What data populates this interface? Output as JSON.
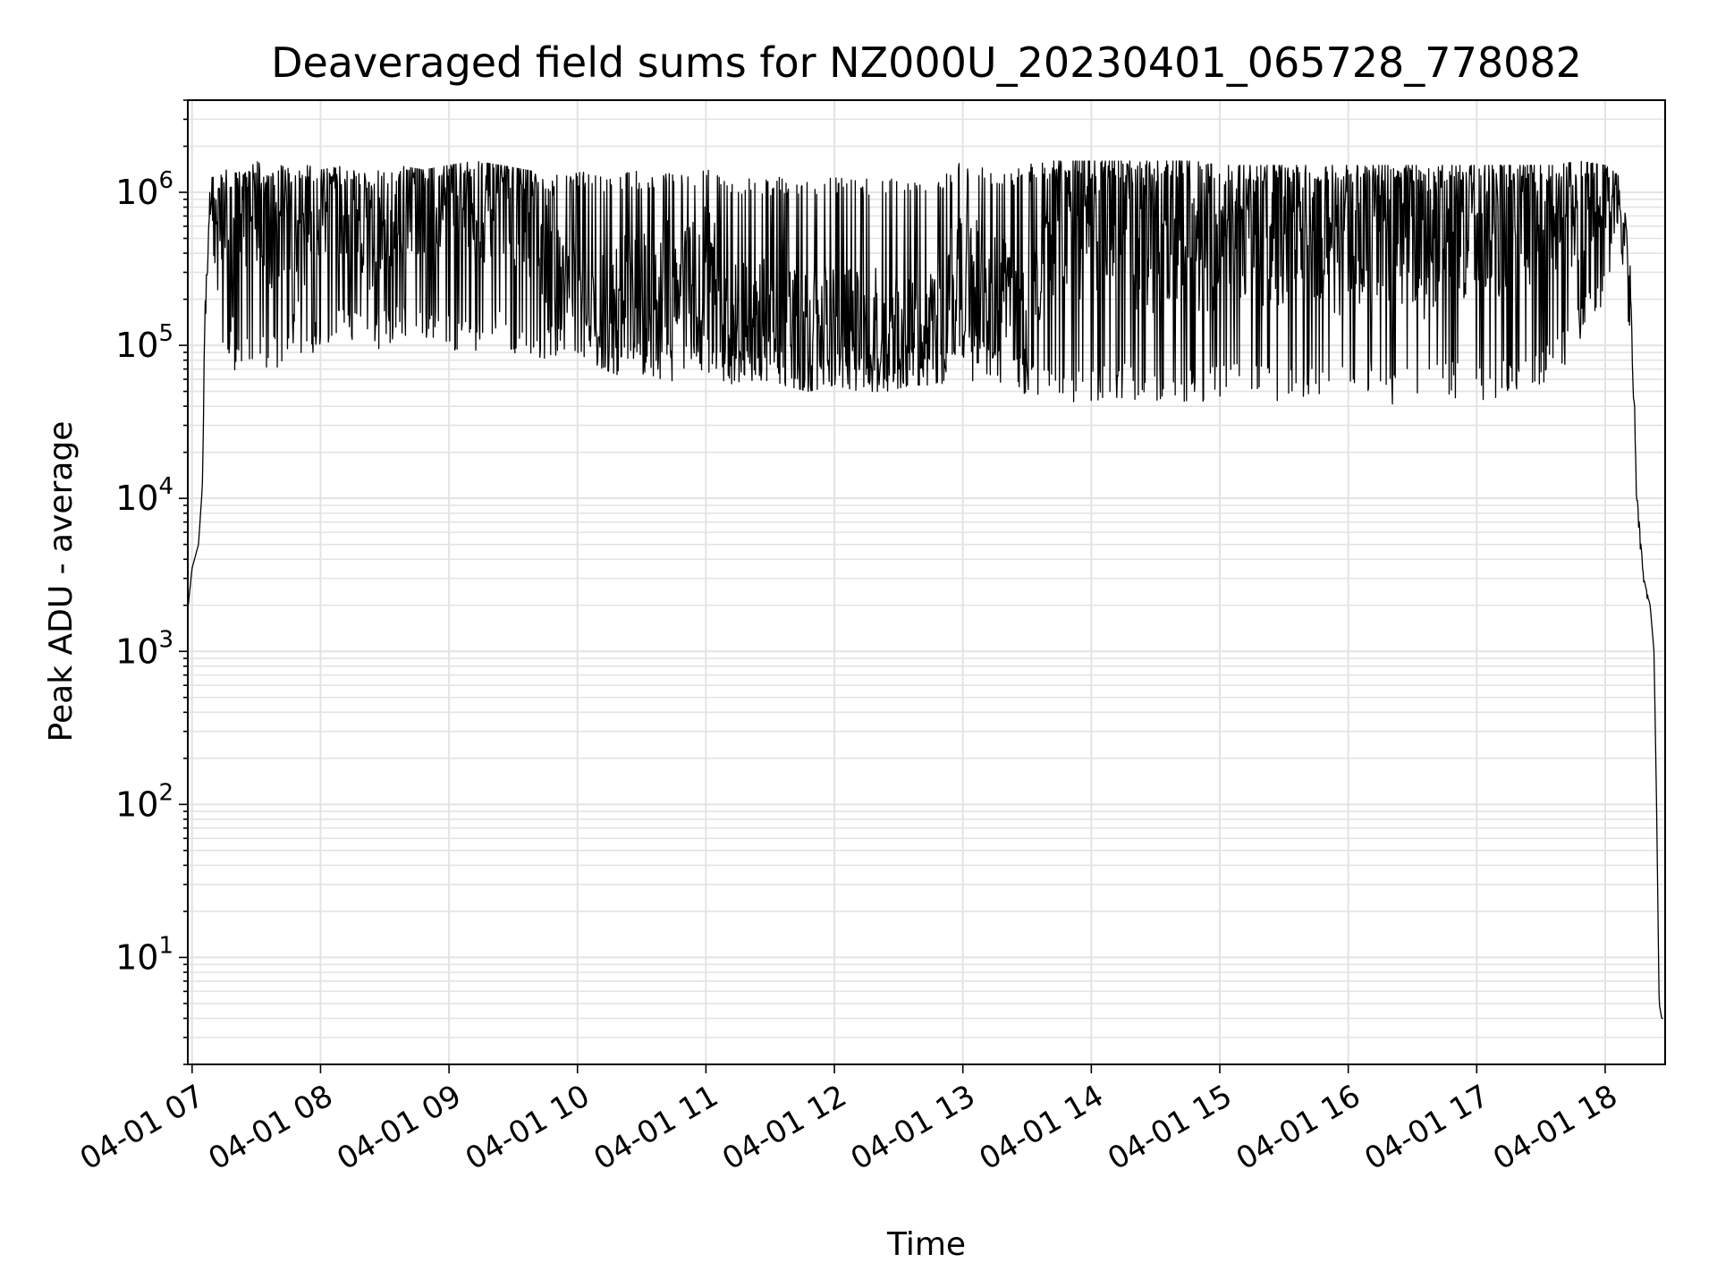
{
  "chart_data": {
    "type": "line",
    "title": "Deaveraged field sums for NZ000U_20230401_065728_778082",
    "xlabel": "Time",
    "ylabel": "Peak ADU - average",
    "yscale": "log",
    "ylim": [
      2,
      4000000
    ],
    "xlim": [
      "04-01 06:58",
      "04-01 18:28"
    ],
    "grid": true,
    "legend": "none",
    "line_color": "#000000",
    "x_ticks": [
      "04-01 07",
      "04-01 08",
      "04-01 09",
      "04-01 10",
      "04-01 11",
      "04-01 12",
      "04-01 13",
      "04-01 14",
      "04-01 15",
      "04-01 16",
      "04-01 17",
      "04-01 18"
    ],
    "y_ticks": [
      {
        "base": "10",
        "exp": "1",
        "value": 10
      },
      {
        "base": "10",
        "exp": "2",
        "value": 100
      },
      {
        "base": "10",
        "exp": "3",
        "value": 1000
      },
      {
        "base": "10",
        "exp": "4",
        "value": 10000
      },
      {
        "base": "10",
        "exp": "5",
        "value": 100000
      },
      {
        "base": "10",
        "exp": "6",
        "value": 1000000
      }
    ],
    "series": [
      {
        "x_unit": "hour of day (04-01)",
        "x": [
          6.97,
          7.0,
          7.05,
          7.08,
          7.1,
          7.13,
          7.15,
          7.18,
          7.2,
          7.25,
          7.3,
          7.35,
          7.4,
          7.5,
          7.6,
          7.7,
          7.8,
          7.9,
          8.0,
          8.2,
          8.4,
          8.6,
          8.8,
          9.0,
          9.2,
          9.4,
          9.6,
          9.8,
          10.0,
          10.2,
          10.4,
          10.6,
          10.8,
          11.0,
          11.2,
          11.4,
          11.6,
          11.8,
          12.0,
          12.2,
          12.4,
          12.6,
          12.8,
          13.0,
          13.2,
          13.4,
          13.6,
          13.8,
          14.0,
          14.2,
          14.4,
          14.6,
          14.8,
          15.0,
          15.2,
          15.4,
          15.6,
          15.8,
          16.0,
          16.2,
          16.4,
          16.6,
          16.8,
          17.0,
          17.2,
          17.4,
          17.6,
          17.8,
          18.0,
          18.1,
          18.15,
          18.2,
          18.25,
          18.3,
          18.35,
          18.38,
          18.4,
          18.42,
          18.44,
          18.45
        ],
        "y": [
          2000,
          3500,
          5000,
          12000,
          150000,
          700000,
          1000000,
          800000,
          500000,
          1000000,
          300000,
          600000,
          900000,
          1000000,
          500000,
          900000,
          300000,
          800000,
          1000000,
          700000,
          500000,
          900000,
          1000000,
          1100000,
          900000,
          1000000,
          800000,
          400000,
          200000,
          150000,
          180000,
          200000,
          300000,
          250000,
          150000,
          120000,
          150000,
          100000,
          130000,
          110000,
          100000,
          120000,
          130000,
          300000,
          200000,
          150000,
          500000,
          600000,
          700000,
          800000,
          500000,
          700000,
          600000,
          500000,
          700000,
          600000,
          700000,
          600000,
          500000,
          700000,
          600000,
          500000,
          700000,
          600000,
          700000,
          800000,
          900000,
          900000,
          1000000,
          1200000,
          600000,
          200000,
          10000,
          3000,
          2000,
          1000,
          100,
          5,
          4,
          4
        ],
        "upper_envelope": [
          2000,
          3500,
          5000,
          12000,
          200000,
          900000,
          1200000,
          1500000,
          1200000,
          1500000,
          1200000,
          1400000,
          1300000,
          1600000,
          1400000,
          1500000,
          1400000,
          1500000,
          1400000,
          1500000,
          1400000,
          1500000,
          1400000,
          1500000,
          1600000,
          1500000,
          1400000,
          1300000,
          1400000,
          1300000,
          1400000,
          1300000,
          1400000,
          1500000,
          1300000,
          1200000,
          1300000,
          1200000,
          1300000,
          1200000,
          1300000,
          1200000,
          1300000,
          1600000,
          1500000,
          1400000,
          1600000,
          1600000,
          1600000,
          1600000,
          1600000,
          1600000,
          1600000,
          1500000,
          1500000,
          1500000,
          1500000,
          1500000,
          1500000,
          1500000,
          1500000,
          1500000,
          1500000,
          1500000,
          1500000,
          1500000,
          1500000,
          1600000,
          1500000,
          1300000,
          800000,
          300000,
          10000,
          3000,
          2000,
          1000,
          100,
          5,
          4,
          4
        ],
        "lower_envelope": [
          2000,
          3500,
          5000,
          12000,
          100000,
          500000,
          500000,
          300000,
          150000,
          80000,
          70000,
          60000,
          70000,
          80000,
          70000,
          70000,
          80000,
          70000,
          90000,
          100000,
          90000,
          110000,
          100000,
          90000,
          90000,
          100000,
          80000,
          80000,
          90000,
          70000,
          60000,
          60000,
          55000,
          50000,
          55000,
          60000,
          55000,
          50000,
          55000,
          50000,
          50000,
          55000,
          55000,
          60000,
          55000,
          50000,
          45000,
          40000,
          40000,
          45000,
          40000,
          45000,
          40000,
          45000,
          45000,
          40000,
          45000,
          45000,
          45000,
          45000,
          40000,
          45000,
          45000,
          40000,
          45000,
          50000,
          60000,
          100000,
          200000,
          600000,
          200000,
          100000,
          5000,
          2500,
          2000,
          1000,
          100,
          5,
          4,
          4
        ]
      }
    ]
  }
}
